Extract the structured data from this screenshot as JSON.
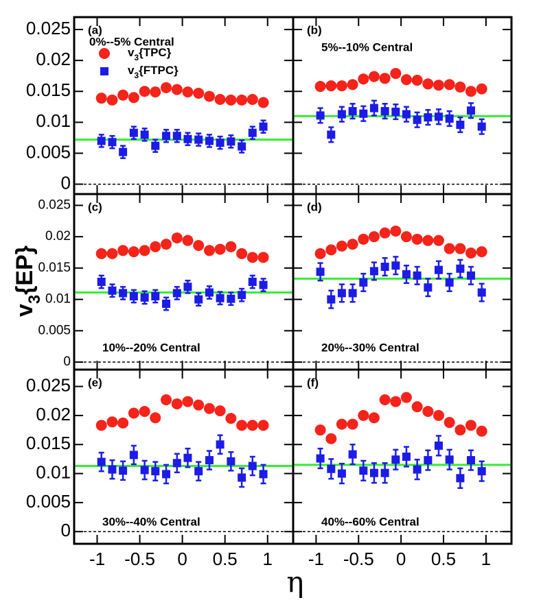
{
  "ylabel": "v3{EP}",
  "xlabel": "η",
  "chart_data": [
    {
      "type": "scatter",
      "panel": "(a)",
      "text": "0%--5% Central",
      "x": [
        -0.95,
        -0.823,
        -0.697,
        -0.57,
        -0.443,
        -0.317,
        -0.19,
        -0.063,
        0.063,
        0.19,
        0.317,
        0.443,
        0.57,
        0.697,
        0.823,
        0.95
      ],
      "xlim": [
        -1.27,
        1.3
      ],
      "xticks": [
        -1,
        -0.5,
        0,
        0.5,
        1
      ],
      "ylim": [
        -0.0016,
        0.027
      ],
      "yticks": [
        0,
        0.005,
        0.01,
        0.015,
        0.02,
        0.025
      ],
      "series": [
        {
          "name": "v3{TPC}",
          "color": "#f5231a",
          "marker": "circle",
          "values": [
            0.0139,
            0.0136,
            0.0144,
            0.014,
            0.015,
            0.0149,
            0.0156,
            0.0153,
            0.0149,
            0.0147,
            0.0142,
            0.0137,
            0.0136,
            0.0136,
            0.0137,
            0.0132
          ]
        },
        {
          "name": "v3{FTPC}",
          "color": "#1c1ce6",
          "marker": "square",
          "values": [
            0.007,
            0.0068,
            0.0052,
            0.0083,
            0.008,
            0.0062,
            0.0078,
            0.0078,
            0.0073,
            0.0072,
            0.007,
            0.0067,
            0.0069,
            0.0061,
            0.0083,
            0.0093
          ],
          "errors": [
            0.001,
            0.001,
            0.001,
            0.001,
            0.001,
            0.001,
            0.001,
            0.001,
            0.001,
            0.001,
            0.001,
            0.001,
            0.001,
            0.001,
            0.001,
            0.001
          ]
        }
      ],
      "fit": 0.0072,
      "fit_color": "#33ee33"
    },
    {
      "type": "scatter",
      "panel": "(b)",
      "text": "5%--10% Central",
      "x": [
        -0.95,
        -0.823,
        -0.697,
        -0.57,
        -0.443,
        -0.317,
        -0.19,
        -0.063,
        0.063,
        0.19,
        0.317,
        0.443,
        0.57,
        0.697,
        0.823,
        0.95
      ],
      "xlim": [
        -1.27,
        1.3
      ],
      "xticks": [
        -1,
        -0.5,
        0,
        0.5,
        1
      ],
      "ylim": [
        -0.0016,
        0.027
      ],
      "yticks": [
        0,
        0.005,
        0.01,
        0.015,
        0.02,
        0.025
      ],
      "series": [
        {
          "name": "v3{TPC}",
          "color": "#f5231a",
          "marker": "circle",
          "values": [
            0.0158,
            0.0159,
            0.0159,
            0.0161,
            0.017,
            0.0174,
            0.0171,
            0.0179,
            0.0169,
            0.0168,
            0.0162,
            0.016,
            0.0161,
            0.0157,
            0.015,
            0.0154
          ]
        },
        {
          "name": "v3{FTPC}",
          "color": "#1c1ce6",
          "marker": "square",
          "values": [
            0.0111,
            0.008,
            0.0113,
            0.0118,
            0.0114,
            0.0123,
            0.0118,
            0.0117,
            0.0113,
            0.0104,
            0.0108,
            0.0109,
            0.0106,
            0.0096,
            0.0119,
            0.0093
          ],
          "errors": [
            0.0012,
            0.0012,
            0.0012,
            0.0012,
            0.0012,
            0.0012,
            0.0012,
            0.0012,
            0.0012,
            0.0012,
            0.0012,
            0.0012,
            0.0012,
            0.0012,
            0.0012,
            0.0012
          ]
        }
      ],
      "fit": 0.011,
      "fit_color": "#33ee33"
    },
    {
      "type": "scatter",
      "panel": "(c)",
      "text": "10%--20% Central",
      "x": [
        -0.95,
        -0.823,
        -0.697,
        -0.57,
        -0.443,
        -0.317,
        -0.19,
        -0.063,
        0.063,
        0.19,
        0.317,
        0.443,
        0.57,
        0.697,
        0.823,
        0.95
      ],
      "xlim": [
        -1.27,
        1.3
      ],
      "xticks": [
        -1,
        -0.5,
        0,
        0.5,
        1
      ],
      "ylim": [
        -0.0012,
        0.0268
      ],
      "yticks": [
        0,
        0.005,
        0.01,
        0.015,
        0.02,
        0.025
      ],
      "series": [
        {
          "name": "v3{TPC}",
          "color": "#f5231a",
          "marker": "circle",
          "values": [
            0.0173,
            0.0173,
            0.0178,
            0.0176,
            0.0178,
            0.0184,
            0.0188,
            0.0198,
            0.0194,
            0.0186,
            0.0178,
            0.018,
            0.0184,
            0.0173,
            0.0167,
            0.0167
          ]
        },
        {
          "name": "v3{FTPC}",
          "color": "#1c1ce6",
          "marker": "square",
          "values": [
            0.0128,
            0.0114,
            0.011,
            0.0105,
            0.0103,
            0.0105,
            0.0093,
            0.011,
            0.012,
            0.01,
            0.0111,
            0.0102,
            0.0101,
            0.0107,
            0.0128,
            0.0123
          ],
          "errors": [
            0.001,
            0.001,
            0.001,
            0.001,
            0.001,
            0.001,
            0.001,
            0.001,
            0.001,
            0.001,
            0.001,
            0.001,
            0.001,
            0.001,
            0.001,
            0.001
          ]
        }
      ],
      "fit": 0.0111,
      "fit_color": "#33ee33"
    },
    {
      "type": "scatter",
      "panel": "(d)",
      "text": "20%--30% Central",
      "x": [
        -0.95,
        -0.823,
        -0.697,
        -0.57,
        -0.443,
        -0.317,
        -0.19,
        -0.063,
        0.063,
        0.19,
        0.317,
        0.443,
        0.57,
        0.697,
        0.823,
        0.95
      ],
      "xlim": [
        -1.27,
        1.3
      ],
      "xticks": [
        -1,
        -0.5,
        0,
        0.5,
        1
      ],
      "ylim": [
        -0.0012,
        0.0268
      ],
      "yticks": [
        0,
        0.005,
        0.01,
        0.015,
        0.02,
        0.025
      ],
      "series": [
        {
          "name": "v3{TPC}",
          "color": "#f5231a",
          "marker": "circle",
          "values": [
            0.0173,
            0.0179,
            0.0185,
            0.0188,
            0.0196,
            0.02,
            0.0206,
            0.0209,
            0.02,
            0.0196,
            0.0194,
            0.0194,
            0.0181,
            0.0181,
            0.0174,
            0.0176
          ]
        },
        {
          "name": "v3{FTPC}",
          "color": "#1c1ce6",
          "marker": "square",
          "values": [
            0.0144,
            0.01,
            0.011,
            0.011,
            0.0127,
            0.0145,
            0.0152,
            0.0154,
            0.014,
            0.0138,
            0.0119,
            0.0147,
            0.0127,
            0.0149,
            0.0138,
            0.0111
          ],
          "errors": [
            0.0014,
            0.0014,
            0.0014,
            0.0014,
            0.0014,
            0.0014,
            0.0014,
            0.0014,
            0.0014,
            0.0014,
            0.0014,
            0.0014,
            0.0014,
            0.0014,
            0.0014,
            0.0014
          ]
        }
      ],
      "fit": 0.0133,
      "fit_color": "#33ee33"
    },
    {
      "type": "scatter",
      "panel": "(e)",
      "text": "30%--40% Central",
      "x": [
        -0.95,
        -0.823,
        -0.697,
        -0.57,
        -0.443,
        -0.317,
        -0.19,
        -0.063,
        0.063,
        0.19,
        0.317,
        0.443,
        0.57,
        0.697,
        0.823,
        0.95
      ],
      "xlim": [
        -1.27,
        1.3
      ],
      "xticks": [
        -1,
        -0.5,
        0,
        0.5,
        1
      ],
      "ylim": [
        -0.0021,
        0.0279
      ],
      "yticks": [
        0,
        0.005,
        0.01,
        0.015,
        0.02,
        0.025
      ],
      "series": [
        {
          "name": "v3{TPC}",
          "color": "#f5231a",
          "marker": "circle",
          "values": [
            0.0183,
            0.0189,
            0.0187,
            0.0204,
            0.0207,
            0.0196,
            0.0227,
            0.022,
            0.0224,
            0.0218,
            0.0212,
            0.0208,
            0.0195,
            0.0183,
            0.0183,
            0.0183
          ]
        },
        {
          "name": "v3{FTPC}",
          "color": "#1c1ce6",
          "marker": "square",
          "values": [
            0.012,
            0.0107,
            0.0105,
            0.0132,
            0.0106,
            0.0104,
            0.0099,
            0.0118,
            0.0127,
            0.0104,
            0.0123,
            0.015,
            0.0121,
            0.0093,
            0.0113,
            0.0099
          ],
          "errors": [
            0.0016,
            0.0016,
            0.0016,
            0.0016,
            0.0016,
            0.0016,
            0.0016,
            0.0016,
            0.0016,
            0.0016,
            0.0016,
            0.0016,
            0.0016,
            0.0016,
            0.0016,
            0.0016
          ]
        }
      ],
      "fit": 0.0113,
      "fit_color": "#33ee33"
    },
    {
      "type": "scatter",
      "panel": "(f)",
      "text": "40%--60% Central",
      "x": [
        -0.95,
        -0.823,
        -0.697,
        -0.57,
        -0.443,
        -0.317,
        -0.19,
        -0.063,
        0.063,
        0.19,
        0.317,
        0.443,
        0.57,
        0.697,
        0.823,
        0.95
      ],
      "xlim": [
        -1.27,
        1.3
      ],
      "xticks": [
        -1,
        -0.5,
        0,
        0.5,
        1
      ],
      "ylim": [
        -0.0021,
        0.0279
      ],
      "yticks": [
        0,
        0.005,
        0.01,
        0.015,
        0.02,
        0.025
      ],
      "series": [
        {
          "name": "v3{TPC}",
          "color": "#f5231a",
          "marker": "circle",
          "values": [
            0.0175,
            0.016,
            0.0185,
            0.0185,
            0.02,
            0.0196,
            0.0227,
            0.0224,
            0.0231,
            0.0215,
            0.0207,
            0.02,
            0.0188,
            0.0175,
            0.0183,
            0.0173
          ]
        },
        {
          "name": "v3{FTPC}",
          "color": "#1c1ce6",
          "marker": "square",
          "values": [
            0.0126,
            0.0108,
            0.01,
            0.0133,
            0.0105,
            0.0101,
            0.0101,
            0.0124,
            0.0129,
            0.0107,
            0.0123,
            0.0148,
            0.0124,
            0.0092,
            0.0123,
            0.0104
          ],
          "errors": [
            0.0017,
            0.0017,
            0.0017,
            0.0017,
            0.0017,
            0.0017,
            0.0017,
            0.0017,
            0.0017,
            0.0017,
            0.0017,
            0.0017,
            0.0017,
            0.0017,
            0.0017,
            0.0017
          ]
        }
      ],
      "fit": 0.0115,
      "fit_color": "#33ee33"
    }
  ]
}
